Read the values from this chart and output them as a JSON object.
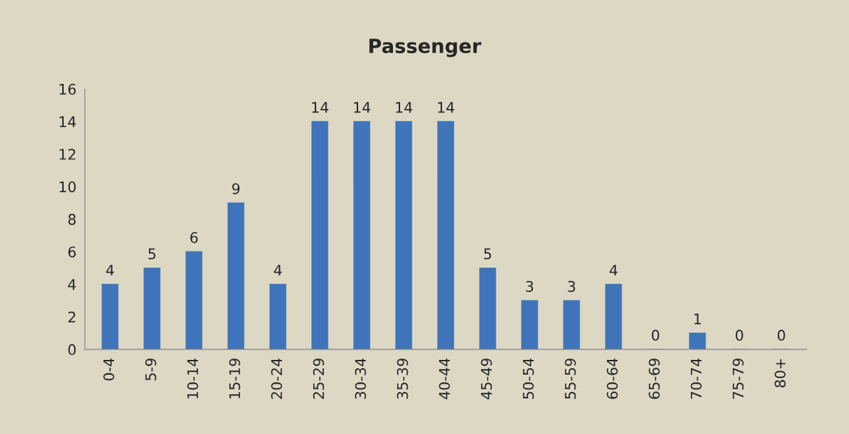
{
  "chart_data": {
    "type": "bar",
    "title": "Passenger",
    "categories": [
      "0-4",
      "5-9",
      "10-14",
      "15-19",
      "20-24",
      "25-29",
      "30-34",
      "35-39",
      "40-44",
      "45-49",
      "50-54",
      "55-59",
      "60-64",
      "65-69",
      "70-74",
      "75-79",
      "80+"
    ],
    "values": [
      4,
      5,
      6,
      9,
      4,
      14,
      14,
      14,
      14,
      5,
      3,
      3,
      4,
      0,
      1,
      0,
      0
    ],
    "color": "#3f74bb",
    "ylim": [
      0,
      16
    ],
    "yticks": [
      0,
      2,
      4,
      6,
      8,
      10,
      12,
      14,
      16
    ],
    "grid": false,
    "data_labels": true
  }
}
